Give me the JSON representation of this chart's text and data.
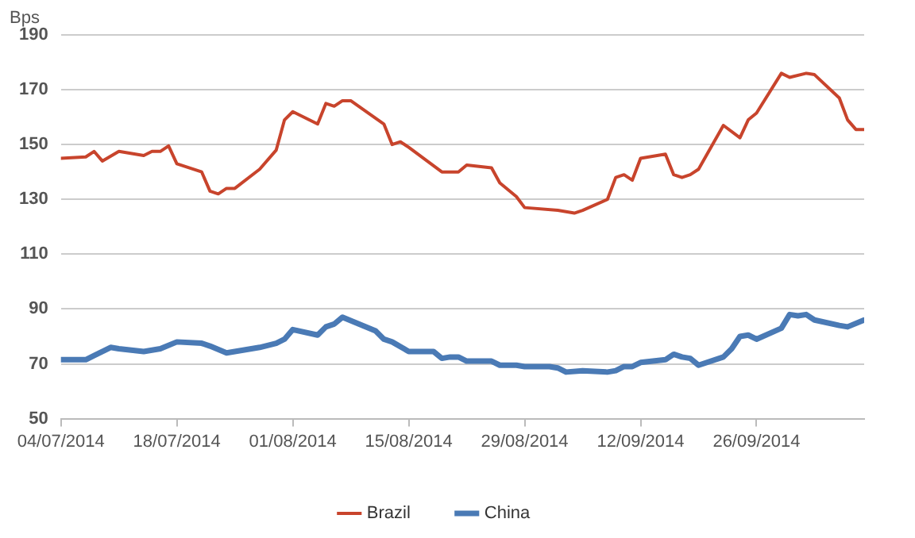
{
  "chart_data": {
    "type": "line",
    "ylabel": "Bps",
    "xlim": [
      "2014-07-04",
      "2014-10-09"
    ],
    "xticks": [
      {
        "value": "2014-07-04",
        "label": "04/07/2014"
      },
      {
        "value": "2014-07-18",
        "label": "18/07/2014"
      },
      {
        "value": "2014-08-01",
        "label": "01/08/2014"
      },
      {
        "value": "2014-08-15",
        "label": "15/08/2014"
      },
      {
        "value": "2014-08-29",
        "label": "29/08/2014"
      },
      {
        "value": "2014-09-12",
        "label": "12/09/2014"
      },
      {
        "value": "2014-09-26",
        "label": "26/09/2014"
      }
    ],
    "ylim": [
      50,
      190
    ],
    "yticks": [
      50,
      70,
      90,
      110,
      130,
      150,
      170,
      190
    ],
    "grid": "y",
    "legend": "bottom",
    "marker": "none",
    "line_style": "solid",
    "series": [
      {
        "name": "Brazil",
        "color": "#c8442c",
        "x": [
          "2014-07-04",
          "2014-07-07",
          "2014-07-08",
          "2014-07-09",
          "2014-07-11",
          "2014-07-14",
          "2014-07-15",
          "2014-07-16",
          "2014-07-17",
          "2014-07-18",
          "2014-07-21",
          "2014-07-22",
          "2014-07-23",
          "2014-07-24",
          "2014-07-25",
          "2014-07-28",
          "2014-07-30",
          "2014-07-31",
          "2014-08-01",
          "2014-08-04",
          "2014-08-05",
          "2014-08-06",
          "2014-08-07",
          "2014-08-08",
          "2014-08-12",
          "2014-08-13",
          "2014-08-14",
          "2014-08-15",
          "2014-08-19",
          "2014-08-20",
          "2014-08-21",
          "2014-08-22",
          "2014-08-25",
          "2014-08-26",
          "2014-08-28",
          "2014-08-29",
          "2014-09-02",
          "2014-09-04",
          "2014-09-05",
          "2014-09-08",
          "2014-09-09",
          "2014-09-10",
          "2014-09-11",
          "2014-09-12",
          "2014-09-15",
          "2014-09-16",
          "2014-09-17",
          "2014-09-18",
          "2014-09-19",
          "2014-09-22",
          "2014-09-24",
          "2014-09-25",
          "2014-09-26",
          "2014-09-29",
          "2014-09-30",
          "2014-10-02",
          "2014-10-03",
          "2014-10-06",
          "2014-10-07",
          "2014-10-08",
          "2014-10-09"
        ],
        "values": [
          145,
          145.5,
          147.5,
          144,
          147.5,
          146,
          147.5,
          147.5,
          149.5,
          143,
          140,
          133,
          132,
          134,
          134,
          141,
          148,
          159,
          162,
          157.5,
          165,
          164,
          166,
          166,
          157.5,
          150,
          151,
          149,
          140,
          140,
          140,
          142.5,
          141.5,
          136,
          131,
          127,
          126,
          125,
          126,
          130,
          138,
          139,
          137,
          145,
          146.5,
          139,
          138,
          139,
          141,
          157,
          152.5,
          159,
          161.5,
          176,
          174.5,
          176,
          175.5,
          167,
          159,
          155.5,
          155.5
        ]
      },
      {
        "name": "China",
        "color": "#4a7ab5",
        "x": [
          "2014-07-04",
          "2014-07-07",
          "2014-07-08",
          "2014-07-10",
          "2014-07-11",
          "2014-07-14",
          "2014-07-15",
          "2014-07-16",
          "2014-07-18",
          "2014-07-21",
          "2014-07-22",
          "2014-07-24",
          "2014-07-28",
          "2014-07-30",
          "2014-07-31",
          "2014-08-01",
          "2014-08-04",
          "2014-08-05",
          "2014-08-06",
          "2014-08-07",
          "2014-08-11",
          "2014-08-12",
          "2014-08-13",
          "2014-08-15",
          "2014-08-18",
          "2014-08-19",
          "2014-08-20",
          "2014-08-21",
          "2014-08-22",
          "2014-08-25",
          "2014-08-26",
          "2014-08-28",
          "2014-08-29",
          "2014-09-01",
          "2014-09-02",
          "2014-09-03",
          "2014-09-05",
          "2014-09-08",
          "2014-09-09",
          "2014-09-10",
          "2014-09-11",
          "2014-09-12",
          "2014-09-15",
          "2014-09-16",
          "2014-09-17",
          "2014-09-18",
          "2014-09-19",
          "2014-09-22",
          "2014-09-23",
          "2014-09-24",
          "2014-09-25",
          "2014-09-26",
          "2014-09-29",
          "2014-09-30",
          "2014-10-01",
          "2014-10-02",
          "2014-10-03",
          "2014-10-06",
          "2014-10-07",
          "2014-10-09"
        ],
        "values": [
          71.5,
          71.5,
          73,
          76,
          75.5,
          74.5,
          75,
          75.5,
          78,
          77.5,
          76.5,
          74,
          76,
          77.5,
          79,
          82.5,
          80.5,
          83.5,
          84.5,
          87,
          82,
          79,
          78,
          74.5,
          74.5,
          72,
          72.5,
          72.5,
          71,
          71,
          69.5,
          69.5,
          69,
          69,
          68.5,
          67,
          67.5,
          67,
          67.5,
          69,
          69,
          70.5,
          71.5,
          73.5,
          72.5,
          72,
          69.5,
          72.5,
          75.5,
          80,
          80.5,
          79,
          83,
          88,
          87.5,
          88,
          86,
          84,
          83.5,
          86
        ]
      }
    ]
  }
}
